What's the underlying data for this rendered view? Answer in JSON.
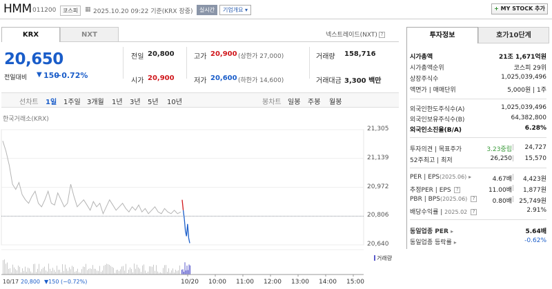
{
  "header": {
    "name": "HMM",
    "code": "011200",
    "market": "코스피",
    "datetime": "2025.10.20 09:22 기준(KRX 장중)",
    "live_badge": "실시간",
    "overview_button": "기업개요",
    "mystock_button": "MY STOCK 추가"
  },
  "tabs": {
    "krx": "KRX",
    "nxt": "NXT",
    "nxt_info": "넥스트레이드(NXT)"
  },
  "quote": {
    "price": "20,650",
    "change_label": "전일대비",
    "change_arrow": "▼",
    "change": "150",
    "change_pct": "−0.72%",
    "prev_close_label": "전일",
    "prev_close": "20,800",
    "open_label": "시가",
    "open": "20,900",
    "high_label": "고가",
    "high": "20,900",
    "upper_limit": "(상한가 27,000)",
    "low_label": "저가",
    "low": "20,600",
    "lower_limit": "(하한가 14,600)",
    "volume_label": "거래량",
    "volume": "158,716",
    "amount_label": "거래대금",
    "amount": "3,300 백만",
    "colors": {
      "up": "#d0161b",
      "down": "#1a5dc9"
    }
  },
  "period_bar": {
    "line_label": "선차트",
    "periods": [
      "1일",
      "1주일",
      "3개월",
      "1년",
      "3년",
      "5년",
      "10년"
    ],
    "selected": "1일",
    "candle_label": "봉차트",
    "candle_periods": [
      "일봉",
      "주봉",
      "월봉"
    ]
  },
  "chart_data": {
    "type": "line",
    "source_label": "한국거래소(KRX)",
    "y_ticks": [
      "21,305",
      "21,139",
      "20,972",
      "20,806",
      "20,640"
    ],
    "ylim": [
      20640,
      21305
    ],
    "x_ticks": [
      "10/20",
      "10:00",
      "11:00",
      "12:00",
      "13:00",
      "14:00",
      "15:00"
    ],
    "footer_date": "10/17",
    "footer_price": "20,800",
    "footer_change": "▼150",
    "footer_pct": "(−0.72%)",
    "volume_legend": "거래량",
    "prev_close_ref": 20806,
    "series": [
      {
        "values": [
          21240,
          21180,
          21100,
          20990,
          20960,
          21000,
          20930,
          20900,
          20880,
          20920,
          20950,
          20880,
          20860,
          20900,
          20950,
          20880,
          20870,
          20940,
          20900,
          20860,
          20880,
          20990,
          20920,
          20860,
          20880,
          20900,
          20870,
          20840,
          20890,
          20860,
          20880,
          20820,
          20860,
          20900,
          20870,
          20840,
          20860,
          20880,
          20850,
          20830,
          20860,
          20840,
          20870,
          20830,
          20850,
          20820,
          20840,
          20860,
          20830,
          20820,
          20850,
          20830,
          20820,
          20840,
          20820,
          20830
        ]
      },
      {
        "values": [
          20900,
          20840,
          20790,
          20720,
          20690,
          20760,
          20680,
          20650
        ]
      }
    ]
  },
  "invest_panel": {
    "tab1": "투자정보",
    "tab2": "호가10단계",
    "rows1": [
      {
        "label": "시가총액",
        "value": "21조 1,671억원",
        "bold": true
      },
      {
        "label": "시가총액순위",
        "value": "코스피 29위"
      },
      {
        "label": "상장주식수",
        "value": "1,025,039,496"
      },
      {
        "label": "액면가 | 매매단위",
        "value": "5,000원 | 1주"
      }
    ],
    "rows2": [
      {
        "label": "외국인한도주식수(A)",
        "value": "1,025,039,496"
      },
      {
        "label": "외국인보유주식수(B)",
        "value": "64,382,800"
      },
      {
        "label": "외국인소진율(B/A)",
        "value": "6.28%",
        "bold": true
      }
    ],
    "opinion_label": "투자의견",
    "target_label": "목표주가",
    "opinion": "3.23중립",
    "target": "24,727",
    "w52_label": "52주최고",
    "w52_low_label": "최저",
    "w52_high": "26,250",
    "w52_low": "15,570",
    "per_label": "PER",
    "eps_label": "EPS",
    "per_date": "(2025.06)",
    "per": "4.67배",
    "eps": "4,423원",
    "fper_label": "추정PER",
    "feps_label": "EPS",
    "fper": "11.00배",
    "feps": "1,877원",
    "pbr_label": "PBR",
    "bps_label": "BPS",
    "pbr_date": "(2025.06)",
    "pbr": "0.80배",
    "bps": "25,749원",
    "div_label": "배당수익률",
    "div_date": "2025.02",
    "div": "2.91%",
    "sector_per_label": "동일업종 PER",
    "sector_per": "5.64배",
    "sector_rate_label": "동일업종 등락률",
    "sector_rate": "-0.62%"
  }
}
